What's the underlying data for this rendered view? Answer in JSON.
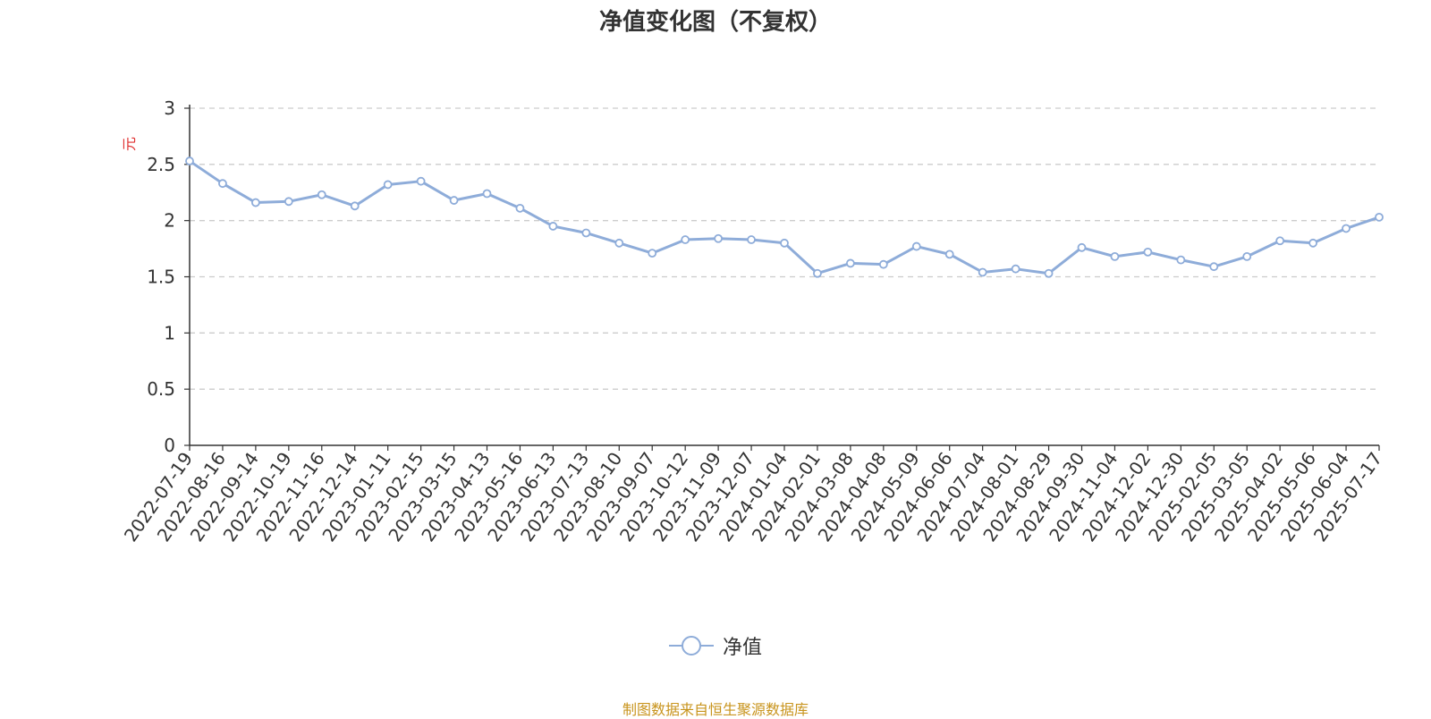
{
  "chart_data": {
    "type": "line",
    "title": "净值变化图（不复权）",
    "ylabel": "元",
    "ylim": [
      0,
      3
    ],
    "yticks": [
      "0",
      "0.5",
      "1",
      "1.5",
      "2",
      "2.5",
      "3"
    ],
    "grid": true,
    "legend_position": "bottom-center",
    "categories": [
      "2022-07-19",
      "2022-08-16",
      "2022-09-14",
      "2022-10-19",
      "2022-11-16",
      "2022-12-14",
      "2023-01-11",
      "2023-02-15",
      "2023-03-15",
      "2023-04-13",
      "2023-05-16",
      "2023-06-13",
      "2023-07-13",
      "2023-08-10",
      "2023-09-07",
      "2023-10-12",
      "2023-11-09",
      "2023-12-07",
      "2024-01-04",
      "2024-02-01",
      "2024-03-08",
      "2024-04-08",
      "2024-05-09",
      "2024-06-06",
      "2024-07-04",
      "2024-08-01",
      "2024-08-29",
      "2024-09-30",
      "2024-11-04",
      "2024-12-02",
      "2024-12-30",
      "2025-02-05",
      "2025-03-05",
      "2025-04-02",
      "2025-05-06",
      "2025-06-04",
      "2025-07-17"
    ],
    "series": [
      {
        "name": "净值",
        "color": "#8eacd9",
        "values": [
          2.53,
          2.33,
          2.16,
          2.17,
          2.23,
          2.13,
          2.32,
          2.35,
          2.18,
          2.24,
          2.11,
          1.95,
          1.89,
          1.8,
          1.71,
          1.83,
          1.84,
          1.83,
          1.8,
          1.53,
          1.62,
          1.61,
          1.77,
          1.7,
          1.54,
          1.57,
          1.53,
          1.76,
          1.68,
          1.72,
          1.65,
          1.59,
          1.68,
          1.82,
          1.8,
          1.93,
          2.03
        ]
      }
    ]
  },
  "legend": {
    "label": "净值"
  },
  "source": "制图数据来自恒生聚源数据库"
}
